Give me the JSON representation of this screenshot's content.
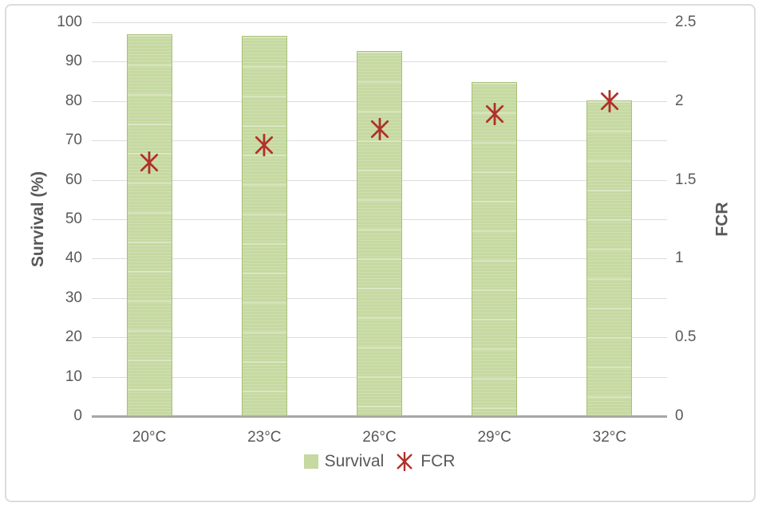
{
  "chart_data": {
    "type": "bar",
    "title": "",
    "categories": [
      "20°C",
      "23°C",
      "26°C",
      "29°C",
      "32°C"
    ],
    "series": [
      {
        "name": "Survival",
        "type": "bar",
        "axis": "left",
        "values": [
          97,
          96.6,
          92.7,
          84.8,
          80.2
        ]
      },
      {
        "name": "FCR",
        "type": "scatter",
        "axis": "right",
        "values": [
          1.61,
          1.72,
          1.82,
          1.92,
          2.0
        ]
      }
    ],
    "left_axis": {
      "label": "Survival (%)",
      "min": 0,
      "max": 100,
      "tick_step": 10,
      "tick_labels": [
        "100",
        "90",
        "80",
        "70",
        "60",
        "50",
        "40",
        "30",
        "20",
        "10",
        "0"
      ]
    },
    "right_axis": {
      "label": "FCR",
      "min": 0,
      "max": 2.5,
      "tick_step": 0.5,
      "tick_labels": [
        "2.5",
        "2",
        "1.5",
        "1",
        "0.5",
        "0"
      ]
    },
    "grid": true,
    "legend_position": "bottom",
    "legend": [
      {
        "label": "Survival",
        "marker": "square"
      },
      {
        "label": "FCR",
        "marker": "asterisk"
      }
    ]
  },
  "colors": {
    "bar_fill": "#c6d9a1",
    "bar_border": "#a6c077",
    "marker": "#b0302a",
    "gridline": "#dcdcdc",
    "axis_line": "#a6a6a6",
    "text": "#595959",
    "panel_border": "#dcdcdc"
  }
}
